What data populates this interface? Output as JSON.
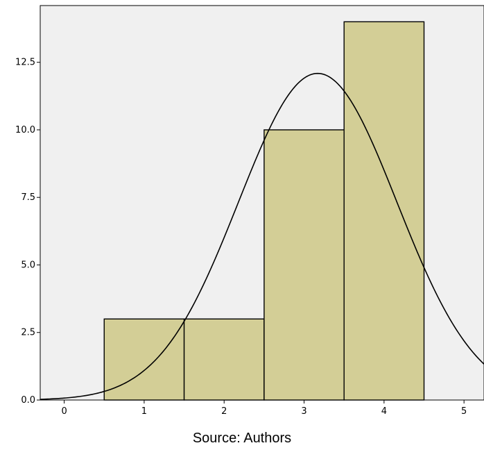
{
  "chart_data": {
    "type": "bar",
    "subtype": "histogram-with-normal-curve",
    "bins": [
      {
        "from": 0.5,
        "to": 1.5,
        "count": 3
      },
      {
        "from": 1.5,
        "to": 2.5,
        "count": 3
      },
      {
        "from": 2.5,
        "to": 3.5,
        "count": 10
      },
      {
        "from": 3.5,
        "to": 4.5,
        "count": 14
      }
    ],
    "normal_curve": {
      "mean": 3.17,
      "sd": 0.99,
      "n": 30
    },
    "xlim": [
      -0.3,
      5.25
    ],
    "ylim": [
      0,
      14.6
    ],
    "x_ticks": [
      "0",
      "1",
      "2",
      "3",
      "4",
      "5"
    ],
    "x_tick_values": [
      0,
      1,
      2,
      3,
      4,
      5
    ],
    "y_ticks": [
      "0.0",
      "2.5",
      "5.0",
      "7.5",
      "10.0",
      "12.5"
    ],
    "y_tick_values": [
      0,
      2.5,
      5,
      7.5,
      10,
      12.5
    ],
    "grid": false,
    "colors": {
      "bar_fill": "#d3ce96",
      "plot_background": "#f0f0f0",
      "curve": "#000000"
    }
  },
  "caption": "Source: Authors"
}
